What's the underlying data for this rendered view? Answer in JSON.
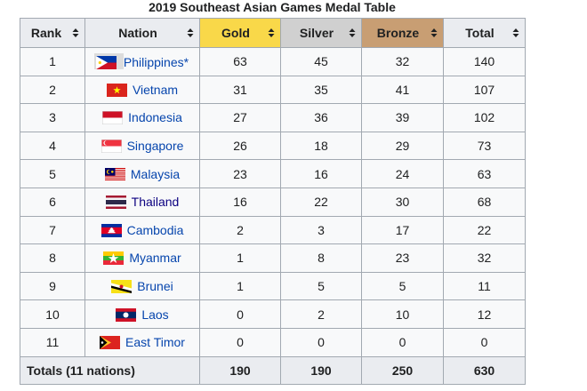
{
  "caption": "2019 Southeast Asian Games Medal Table",
  "headers": {
    "rank": "Rank",
    "nation": "Nation",
    "gold": "Gold",
    "silver": "Silver",
    "bronze": "Bronze",
    "total": "Total"
  },
  "colors": {
    "gold": "#f9d849",
    "silver": "#d0d0d0",
    "bronze": "#c89e73",
    "header_bg": "#eaecf0",
    "link": "#0645ad"
  },
  "rows": [
    {
      "rank": "1",
      "nation": "Philippines*",
      "flag": "philippines-flag-icon",
      "gold": "63",
      "silver": "45",
      "bronze": "32",
      "total": "140"
    },
    {
      "rank": "2",
      "nation": "Vietnam",
      "flag": "vietnam-flag-icon",
      "gold": "31",
      "silver": "35",
      "bronze": "41",
      "total": "107"
    },
    {
      "rank": "3",
      "nation": "Indonesia",
      "flag": "indonesia-flag-icon",
      "gold": "27",
      "silver": "36",
      "bronze": "39",
      "total": "102"
    },
    {
      "rank": "4",
      "nation": "Singapore",
      "flag": "singapore-flag-icon",
      "gold": "26",
      "silver": "18",
      "bronze": "29",
      "total": "73"
    },
    {
      "rank": "5",
      "nation": "Malaysia",
      "flag": "malaysia-flag-icon",
      "gold": "23",
      "silver": "16",
      "bronze": "24",
      "total": "63"
    },
    {
      "rank": "6",
      "nation": "Thailand",
      "flag": "thailand-flag-icon",
      "gold": "16",
      "silver": "22",
      "bronze": "30",
      "total": "68"
    },
    {
      "rank": "7",
      "nation": "Cambodia",
      "flag": "cambodia-flag-icon",
      "gold": "2",
      "silver": "3",
      "bronze": "17",
      "total": "22"
    },
    {
      "rank": "8",
      "nation": "Myanmar",
      "flag": "myanmar-flag-icon",
      "gold": "1",
      "silver": "8",
      "bronze": "23",
      "total": "32"
    },
    {
      "rank": "9",
      "nation": "Brunei",
      "flag": "brunei-flag-icon",
      "gold": "1",
      "silver": "5",
      "bronze": "5",
      "total": "11"
    },
    {
      "rank": "10",
      "nation": "Laos",
      "flag": "laos-flag-icon",
      "gold": "0",
      "silver": "2",
      "bronze": "10",
      "total": "12"
    },
    {
      "rank": "11",
      "nation": "East Timor",
      "flag": "east-timor-flag-icon",
      "gold": "0",
      "silver": "0",
      "bronze": "0",
      "total": "0"
    }
  ],
  "totals": {
    "label": "Totals (11 nations)",
    "gold": "190",
    "silver": "190",
    "bronze": "250",
    "total": "630"
  }
}
